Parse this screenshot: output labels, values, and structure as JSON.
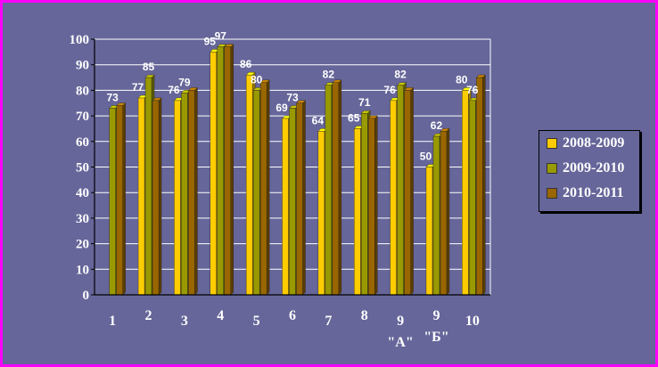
{
  "chart_data": {
    "type": "bar",
    "categories": [
      "1",
      "2",
      "3",
      "4",
      "5",
      "6",
      "7",
      "8",
      "9 \"А\"",
      "9 \"Б\"",
      "10"
    ],
    "category_lines": [
      [
        "1"
      ],
      [
        "2"
      ],
      [
        "3"
      ],
      [
        "4"
      ],
      [
        "5"
      ],
      [
        "6"
      ],
      [
        "7"
      ],
      [
        "8"
      ],
      [
        "9",
        "\"А\""
      ],
      [
        "9",
        "\"Б\""
      ],
      [
        "10"
      ]
    ],
    "series": [
      {
        "name": "2008-2009",
        "color": "#ffcc00",
        "values": [
          null,
          77,
          76,
          95,
          86,
          69,
          64,
          65,
          76,
          50,
          80
        ]
      },
      {
        "name": "2009-2010",
        "color": "#999900",
        "values": [
          73,
          85,
          79,
          97,
          80,
          73,
          82,
          71,
          82,
          62,
          76
        ]
      },
      {
        "name": "2010-2011",
        "color": "#996600",
        "values": [
          74,
          76,
          80,
          97,
          83,
          75,
          83,
          69,
          80,
          64,
          85
        ]
      }
    ],
    "data_labels": [
      [
        "",
        "77",
        "76",
        "95",
        "86",
        "69",
        "64",
        "65",
        "76",
        "50",
        "80"
      ],
      [
        "73",
        "85",
        "79",
        "97",
        "80",
        "73",
        "82",
        "71",
        "82",
        "62",
        "76"
      ],
      [
        "",
        "",
        "",
        "",
        "",
        "",
        "",
        "",
        "",
        "",
        ""
      ]
    ],
    "ylim": [
      0,
      100
    ],
    "yticks": [
      "0",
      "10",
      "20",
      "30",
      "40",
      "50",
      "60",
      "70",
      "80",
      "90",
      "100"
    ],
    "grid": true,
    "legend": "right",
    "title": "",
    "xlabel": "",
    "ylabel": ""
  }
}
